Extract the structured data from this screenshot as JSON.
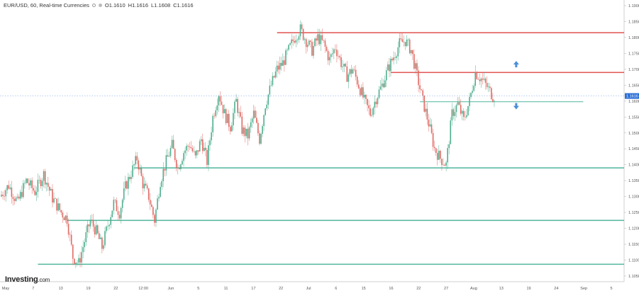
{
  "header": {
    "symbol_text": "EUR/USD, 60, Real-time Currencies",
    "ohlc": {
      "o": "O1.1610",
      "h": "H1.1616",
      "l": "L1.1608",
      "c": "C1.1616"
    }
  },
  "logo": {
    "text": "Investing",
    "suffix": ".com"
  },
  "colors": {
    "support": "#4fb59d",
    "resistance": "#e0524f",
    "up_candle": "#4fae8e",
    "down_candle": "#e06a64",
    "arrow": "#4a8fd8",
    "last_price": "#2b6fd6"
  },
  "chart_data": {
    "type": "candlestick",
    "ylim": [
      1.105,
      1.19
    ],
    "y_ticks": [
      "1.1900",
      "1.1850",
      "1.1800",
      "1.1750",
      "1.1700",
      "1.1650",
      "1.1600",
      "1.1550",
      "1.1500",
      "1.1450",
      "1.1400",
      "1.1350",
      "1.1300",
      "1.1250",
      "1.1200",
      "1.1150",
      "1.1100",
      "1.1050"
    ],
    "x_ticks": [
      "May",
      "7",
      "13",
      "19",
      "22",
      "12:00",
      "Jun",
      "5",
      "11",
      "17",
      "22",
      "Jul",
      "6",
      "15",
      "16",
      "22",
      "27",
      "Aug",
      "13",
      "19",
      "24",
      "Sep",
      "5"
    ],
    "last_price": "1.1616",
    "price_path": [
      [
        0,
        1.13
      ],
      [
        3,
        1.1335
      ],
      [
        6,
        1.128
      ],
      [
        9,
        1.135
      ],
      [
        12,
        1.1315
      ],
      [
        15,
        1.137
      ],
      [
        18,
        1.1295
      ],
      [
        21,
        1.125
      ],
      [
        23,
        1.123
      ],
      [
        25,
        1.111
      ],
      [
        27,
        1.109
      ],
      [
        29,
        1.116
      ],
      [
        31,
        1.1225
      ],
      [
        33,
        1.119
      ],
      [
        35,
        1.114
      ],
      [
        37,
        1.121
      ],
      [
        39,
        1.128
      ],
      [
        41,
        1.125
      ],
      [
        43,
        1.133
      ],
      [
        45,
        1.1375
      ],
      [
        47,
        1.142
      ],
      [
        49,
        1.134
      ],
      [
        51,
        1.13
      ],
      [
        53,
        1.1225
      ],
      [
        55,
        1.135
      ],
      [
        57,
        1.141
      ],
      [
        59,
        1.146
      ],
      [
        61,
        1.139
      ],
      [
        63,
        1.144
      ],
      [
        65,
        1.1465
      ],
      [
        67,
        1.142
      ],
      [
        69,
        1.148
      ],
      [
        71,
        1.141
      ],
      [
        73,
        1.155
      ],
      [
        75,
        1.1625
      ],
      [
        77,
        1.156
      ],
      [
        79,
        1.152
      ],
      [
        81,
        1.16
      ],
      [
        83,
        1.151
      ],
      [
        85,
        1.149
      ],
      [
        87,
        1.156
      ],
      [
        89,
        1.148
      ],
      [
        91,
        1.159
      ],
      [
        93,
        1.165
      ],
      [
        95,
        1.17
      ],
      [
        97,
        1.172
      ],
      [
        99,
        1.176
      ],
      [
        101,
        1.18
      ],
      [
        103,
        1.1825
      ],
      [
        105,
        1.179
      ],
      [
        107,
        1.176
      ],
      [
        109,
        1.18
      ],
      [
        111,
        1.178
      ],
      [
        113,
        1.173
      ],
      [
        115,
        1.177
      ],
      [
        117,
        1.172
      ],
      [
        119,
        1.168
      ],
      [
        121,
        1.17
      ],
      [
        123,
        1.165
      ],
      [
        125,
        1.16
      ],
      [
        127,
        1.156
      ],
      [
        129,
        1.161
      ],
      [
        131,
        1.165
      ],
      [
        133,
        1.17
      ],
      [
        135,
        1.174
      ],
      [
        137,
        1.178
      ],
      [
        139,
        1.179
      ],
      [
        141,
        1.176
      ],
      [
        143,
        1.168
      ],
      [
        145,
        1.16
      ],
      [
        147,
        1.153
      ],
      [
        149,
        1.145
      ],
      [
        151,
        1.142
      ],
      [
        153,
        1.14
      ],
      [
        155,
        1.156
      ],
      [
        157,
        1.159
      ],
      [
        159,
        1.154
      ],
      [
        161,
        1.16
      ],
      [
        163,
        1.169
      ],
      [
        165,
        1.167
      ],
      [
        167,
        1.1645
      ],
      [
        169,
        1.1616
      ]
    ],
    "horizontal_levels": [
      {
        "kind": "resistance",
        "price": 1.1815,
        "from": 95,
        "to": 214
      },
      {
        "kind": "resistance",
        "price": 1.169,
        "from": 134,
        "to": 214
      },
      {
        "kind": "support",
        "price": 1.1598,
        "from": 144,
        "to": 200
      },
      {
        "kind": "support",
        "price": 1.139,
        "from": 46,
        "to": 214
      },
      {
        "kind": "support",
        "price": 1.1225,
        "from": 23,
        "to": 214
      },
      {
        "kind": "support",
        "price": 1.1087,
        "from": 13,
        "to": 214
      }
    ],
    "arrows": [
      {
        "direction": "up",
        "x": 177,
        "price": 1.1715
      },
      {
        "direction": "down",
        "x": 177,
        "price": 1.1585
      }
    ]
  }
}
